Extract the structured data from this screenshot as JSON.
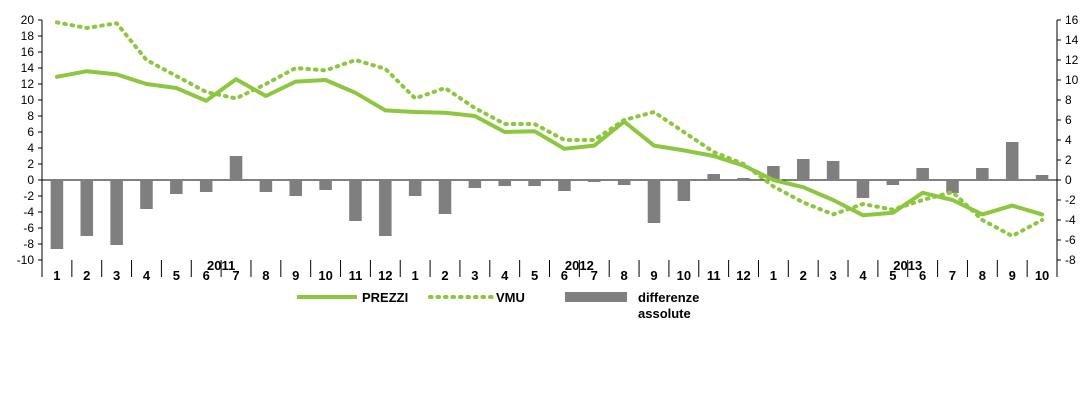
{
  "chart_data": {
    "type": "bar+line",
    "categories": [
      "1",
      "2",
      "3",
      "4",
      "5",
      "6",
      "7",
      "8",
      "9",
      "10",
      "11",
      "12",
      "1",
      "2",
      "3",
      "4",
      "5",
      "6",
      "7",
      "8",
      "9",
      "10",
      "11",
      "12",
      "1",
      "2",
      "3",
      "4",
      "5",
      "6",
      "7",
      "8",
      "9",
      "10"
    ],
    "years": [
      "2011",
      "2012",
      "2013"
    ],
    "series": [
      {
        "name": "PREZZI",
        "kind": "line",
        "axis": "left",
        "color": "#8dc63f",
        "style": "solid",
        "values": [
          12.9,
          13.6,
          13.2,
          12.0,
          11.5,
          9.9,
          12.6,
          10.5,
          12.3,
          12.5,
          10.9,
          8.7,
          8.5,
          8.4,
          8.0,
          6.0,
          6.1,
          3.9,
          4.3,
          7.3,
          4.3,
          3.7,
          3.0,
          1.8,
          0.0,
          -0.9,
          -2.5,
          -4.4,
          -4.1,
          -1.6,
          -2.5,
          -4.3,
          -3.2,
          -4.3
        ]
      },
      {
        "name": "VMU",
        "kind": "line",
        "axis": "left",
        "color": "#8dc63f",
        "style": "dotted",
        "values": [
          19.7,
          19.0,
          19.6,
          15.0,
          13.0,
          11.0,
          10.2,
          12.0,
          14.0,
          13.7,
          15.0,
          13.9,
          10.2,
          11.5,
          9.0,
          7.0,
          7.0,
          5.0,
          5.0,
          7.5,
          8.5,
          6.0,
          3.5,
          2.0,
          -0.8,
          -2.8,
          -4.3,
          -3.0,
          -3.7,
          -2.5,
          -1.5,
          -5.0,
          -7.0,
          -5.0
        ]
      },
      {
        "name": "differenze\nassolute",
        "kind": "bar",
        "axis": "right",
        "color": "#7f7f7f",
        "values": [
          -6.9,
          -5.6,
          -6.5,
          -2.9,
          -1.4,
          -1.2,
          2.4,
          -1.2,
          -1.6,
          -1.0,
          -4.1,
          -5.6,
          -1.6,
          -3.4,
          -0.8,
          -0.6,
          -0.6,
          -1.1,
          -0.2,
          -0.5,
          -4.3,
          -2.1,
          0.6,
          0.2,
          1.4,
          2.1,
          1.9,
          -1.8,
          -0.5,
          1.2,
          -1.3,
          1.2,
          3.8,
          0.5
        ]
      }
    ],
    "left_axis": {
      "min": -10,
      "max": 20,
      "step": 2,
      "ticks": [
        "20",
        "18",
        "16",
        "14",
        "12",
        "10",
        "8",
        "6",
        "4",
        "2",
        "0",
        "-2",
        "-4",
        "-6",
        "-8",
        "-10"
      ]
    },
    "right_axis": {
      "min": -8,
      "max": 16,
      "step": 2,
      "ticks": [
        "16",
        "14",
        "12",
        "10",
        "8",
        "6",
        "4",
        "2",
        "0",
        "-2",
        "-4",
        "-6",
        "-8"
      ]
    },
    "grid": false,
    "legend_placement": "bottom-center"
  },
  "legend": {
    "prezzi": "PREZZI",
    "vmu": "VMU",
    "diff_line1": "differenze",
    "diff_line2": "assolute"
  }
}
